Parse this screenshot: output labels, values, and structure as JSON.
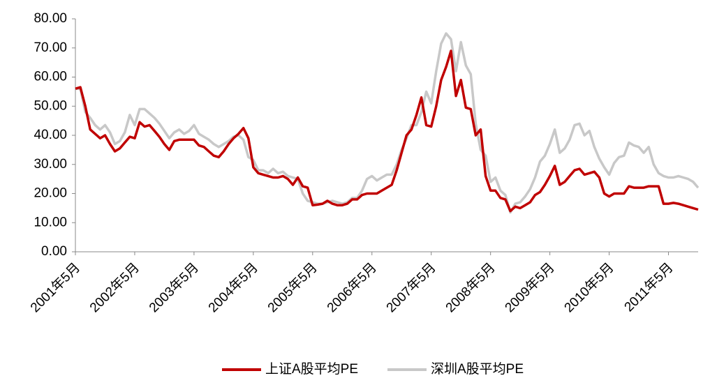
{
  "chart_data": {
    "type": "line",
    "categories": [
      "2001年5月",
      null,
      null,
      null,
      null,
      null,
      null,
      null,
      null,
      null,
      null,
      null,
      "2002年5月",
      null,
      null,
      null,
      null,
      null,
      null,
      null,
      null,
      null,
      null,
      null,
      "2003年5月",
      null,
      null,
      null,
      null,
      null,
      null,
      null,
      null,
      null,
      null,
      null,
      "2004年5月",
      null,
      null,
      null,
      null,
      null,
      null,
      null,
      null,
      null,
      null,
      null,
      "2005年5月",
      null,
      null,
      null,
      null,
      null,
      null,
      null,
      null,
      null,
      null,
      null,
      "2006年5月",
      null,
      null,
      null,
      null,
      null,
      null,
      null,
      null,
      null,
      null,
      null,
      "2007年5月",
      null,
      null,
      null,
      null,
      null,
      null,
      null,
      null,
      null,
      null,
      null,
      "2008年5月",
      null,
      null,
      null,
      null,
      null,
      null,
      null,
      null,
      null,
      null,
      null,
      "2009年5月",
      null,
      null,
      null,
      null,
      null,
      null,
      null,
      null,
      null,
      null,
      null,
      "2010年5月",
      null,
      null,
      null,
      null,
      null,
      null,
      null,
      null,
      null,
      null,
      null,
      "2011年5月",
      null,
      null,
      null,
      null,
      null,
      null
    ],
    "series": [
      {
        "name": "上证A股平均PE",
        "color": "#c00000",
        "values": [
          56,
          56.5,
          50,
          42,
          40.5,
          39,
          40,
          37,
          34.5,
          35.5,
          37.5,
          39.5,
          39,
          44.5,
          43,
          43.5,
          41.5,
          39.5,
          37,
          35,
          38,
          38.5,
          38.5,
          38.5,
          38.5,
          36.5,
          36,
          34.5,
          33,
          32.5,
          34.5,
          37,
          39,
          40.5,
          42.5,
          39,
          29,
          27,
          26.5,
          26,
          25.5,
          25.5,
          26,
          25,
          23,
          25.5,
          22.5,
          22,
          16,
          16.2,
          16.5,
          17.5,
          16.5,
          16,
          16,
          16.5,
          18,
          18,
          19.5,
          20,
          20,
          20,
          21,
          22,
          23,
          28,
          34,
          40,
          42,
          47,
          53,
          43.5,
          43,
          50,
          59,
          63.5,
          69,
          53.5,
          59,
          49.5,
          49,
          40,
          42,
          26,
          21,
          21,
          18.5,
          18,
          14,
          15.5,
          15,
          16,
          17,
          19.5,
          20.5,
          23,
          26,
          29.5,
          23,
          24,
          26,
          28,
          28.5,
          26.5,
          27,
          27.5,
          25.5,
          20,
          19,
          20,
          20,
          20,
          22.5,
          22,
          22,
          22,
          22.5,
          22.5,
          22.5,
          16.5,
          16.5,
          16.8,
          16.5,
          16,
          15.5,
          15,
          14.5
        ]
      },
      {
        "name": "深圳A股平均PE",
        "color": "#c8c8c8",
        "values": [
          56,
          56,
          48,
          46,
          43.5,
          42,
          43.5,
          41,
          37,
          38,
          41,
          47,
          43.5,
          49,
          49,
          47.5,
          46,
          44,
          41.5,
          39,
          41,
          42,
          40.5,
          41.5,
          43.5,
          40.5,
          39.5,
          38.5,
          37,
          36,
          37,
          38,
          39.5,
          40,
          38.5,
          32.5,
          31.5,
          28,
          28,
          27,
          28.5,
          27,
          27.5,
          26,
          25.5,
          25,
          20,
          17.5,
          17,
          16.5,
          16.5,
          17,
          17.5,
          17,
          16.5,
          17,
          18.5,
          18.5,
          21,
          25,
          26,
          24.5,
          25.5,
          26.5,
          26.5,
          30,
          35,
          39,
          43.5,
          43.5,
          48,
          55,
          51,
          62,
          71.5,
          75,
          73,
          62,
          72,
          64,
          61,
          44,
          35,
          33,
          24,
          25.5,
          21,
          19.5,
          13.5,
          16.5,
          17,
          19,
          21.5,
          25.5,
          31,
          33,
          37,
          42,
          34,
          35.5,
          38.5,
          43.5,
          44,
          40,
          41.5,
          36,
          32,
          29,
          26.5,
          30.5,
          32.5,
          33,
          37.5,
          36.5,
          36,
          34,
          36,
          30,
          27,
          26,
          25.5,
          25.5,
          26,
          25.5,
          25,
          24,
          22
        ]
      }
    ],
    "ylim": [
      0,
      80
    ],
    "yticks": [
      {
        "value": 0,
        "label": "0.00"
      },
      {
        "value": 10,
        "label": "10.00"
      },
      {
        "value": 20,
        "label": "20.00"
      },
      {
        "value": 30,
        "label": "30.00"
      },
      {
        "value": 40,
        "label": "40.00"
      },
      {
        "value": 50,
        "label": "50.00"
      },
      {
        "value": 60,
        "label": "60.00"
      },
      {
        "value": 70,
        "label": "70.00"
      },
      {
        "value": 80,
        "label": "80.00"
      }
    ],
    "grid": false,
    "legend": "bottom"
  }
}
